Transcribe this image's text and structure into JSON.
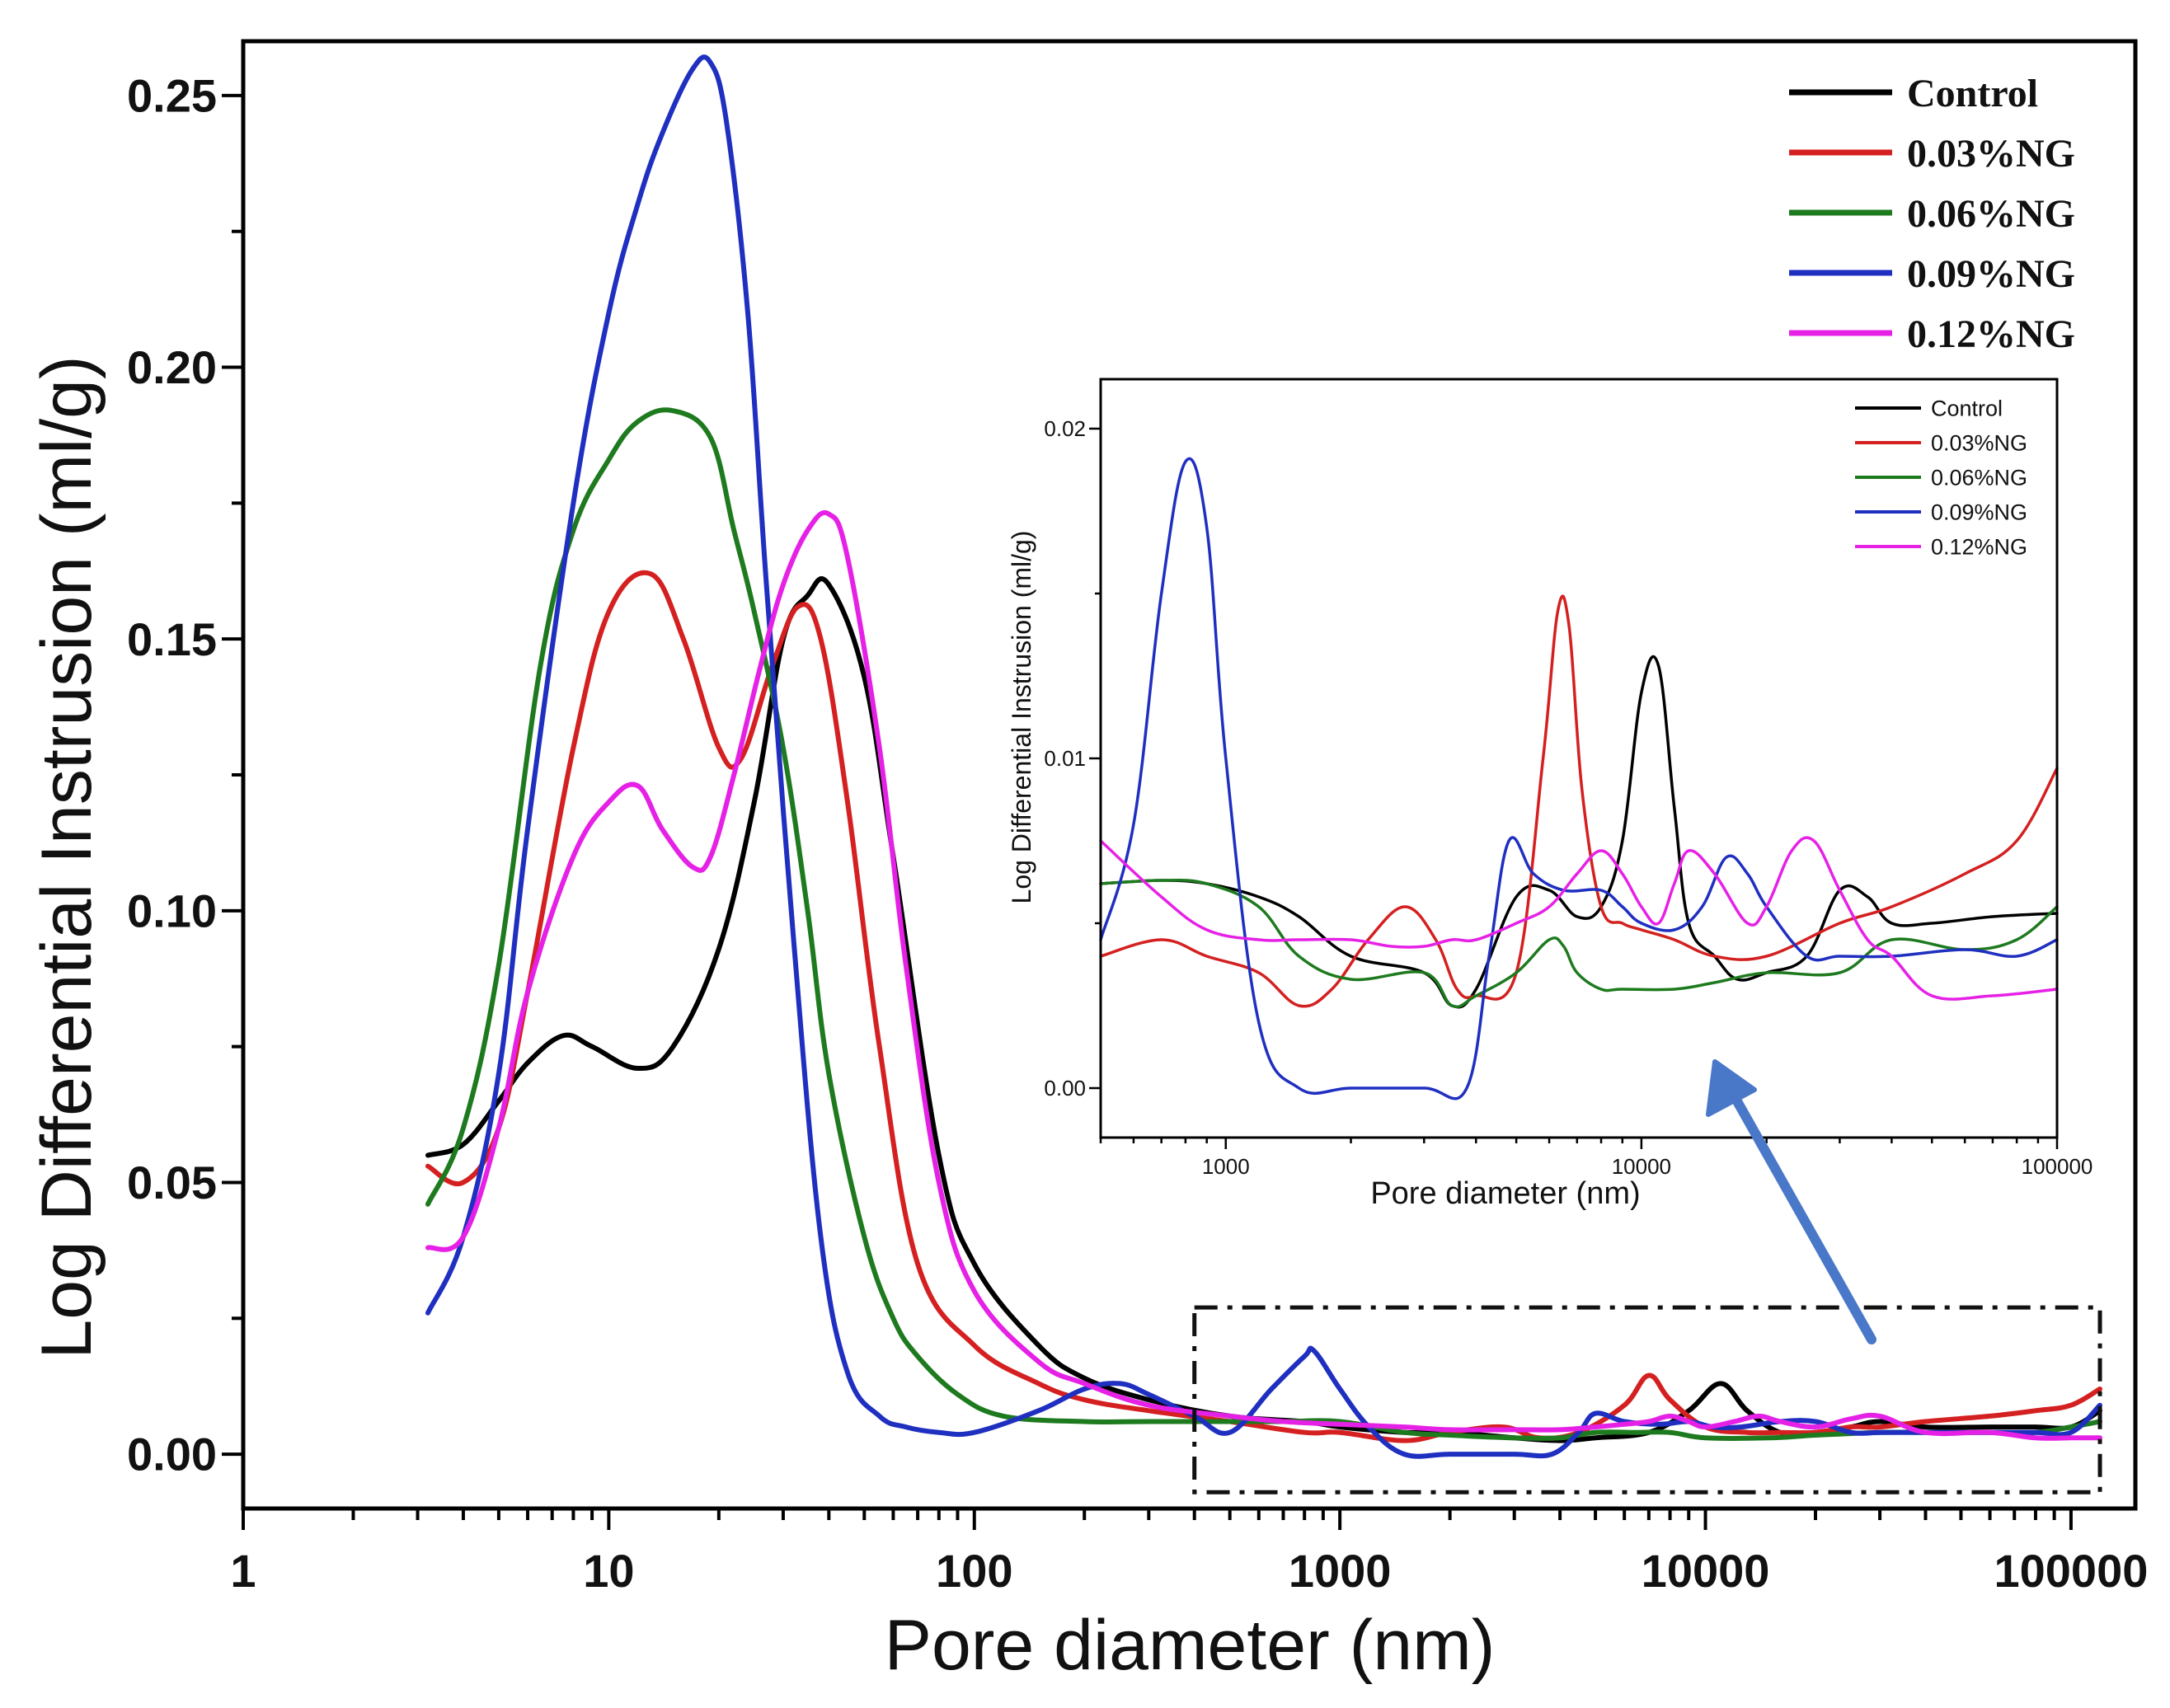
{
  "chart_data": [
    {
      "type": "line",
      "xscale": "log",
      "xlabel": "Pore diameter (nm)",
      "ylabel": "Log Differential Instrusion (ml/g)",
      "xlim": [
        1,
        150000
      ],
      "ylim": [
        -0.01,
        0.26
      ],
      "xticks": [
        1,
        10,
        100,
        1000,
        10000,
        100000
      ],
      "xtick_labels": [
        "1",
        "10",
        "100",
        "1000",
        "10000",
        "100000"
      ],
      "yticks": [
        0,
        0.05,
        0.1,
        0.15,
        0.2,
        0.25
      ],
      "ytick_labels": [
        "0.00",
        "0.05",
        "0.10",
        "0.15",
        "0.20",
        "0.25"
      ],
      "legend_position": "top-right",
      "highlight_box": {
        "x_range": [
          400,
          120000
        ],
        "y_range": [
          -0.007,
          0.027
        ]
      },
      "series": [
        {
          "name": "Control",
          "color": "#000000",
          "x": [
            3.2,
            4,
            5,
            6,
            7.5,
            9,
            12,
            15,
            20,
            25,
            30,
            35,
            40,
            50,
            60,
            80,
            100,
            150,
            200,
            300,
            500,
            800,
            1000,
            1500,
            2000,
            3000,
            4000,
            5000,
            7000,
            9000,
            11000,
            13000,
            16000,
            20000,
            25000,
            30000,
            40000,
            60000,
            80000,
            100000,
            120000
          ],
          "y": [
            0.055,
            0.057,
            0.065,
            0.072,
            0.077,
            0.075,
            0.071,
            0.075,
            0.093,
            0.12,
            0.15,
            0.158,
            0.16,
            0.143,
            0.11,
            0.055,
            0.035,
            0.02,
            0.014,
            0.01,
            0.007,
            0.006,
            0.005,
            0.004,
            0.004,
            0.003,
            0.0025,
            0.003,
            0.004,
            0.008,
            0.013,
            0.008,
            0.004,
            0.004,
            0.005,
            0.006,
            0.005,
            0.005,
            0.005,
            0.005,
            0.008
          ]
        },
        {
          "name": "0.03%NG",
          "color": "#d42020",
          "x": [
            3.2,
            4,
            5,
            6,
            8,
            10,
            13,
            16,
            20,
            23,
            28,
            33,
            38,
            45,
            55,
            70,
            100,
            150,
            200,
            300,
            500,
            800,
            1000,
            1500,
            2000,
            2800,
            3500,
            4500,
            6000,
            7000,
            8000,
            10000,
            13000,
            16000,
            20000,
            25000,
            30000,
            40000,
            60000,
            80000,
            100000,
            120000
          ],
          "y": [
            0.053,
            0.05,
            0.06,
            0.085,
            0.13,
            0.155,
            0.162,
            0.15,
            0.13,
            0.128,
            0.145,
            0.156,
            0.15,
            0.12,
            0.075,
            0.035,
            0.02,
            0.013,
            0.01,
            0.008,
            0.006,
            0.004,
            0.004,
            0.0025,
            0.004,
            0.005,
            0.003,
            0.004,
            0.009,
            0.0145,
            0.01,
            0.005,
            0.004,
            0.004,
            0.004,
            0.005,
            0.005,
            0.006,
            0.007,
            0.008,
            0.009,
            0.012
          ]
        },
        {
          "name": "0.06%NG",
          "color": "#1e7a1e",
          "x": [
            3.2,
            4,
            5,
            6.5,
            8,
            10,
            12,
            15,
            19,
            22,
            25,
            30,
            35,
            40,
            50,
            60,
            70,
            90,
            120,
            200,
            300,
            500,
            700,
            1000,
            1500,
            2000,
            3000,
            4000,
            5000,
            6500,
            8000,
            10000,
            15000,
            20000,
            30000,
            40000,
            60000,
            80000,
            100000,
            120000
          ],
          "y": [
            0.046,
            0.06,
            0.09,
            0.145,
            0.17,
            0.183,
            0.19,
            0.192,
            0.187,
            0.17,
            0.155,
            0.13,
            0.1,
            0.07,
            0.04,
            0.025,
            0.018,
            0.011,
            0.007,
            0.006,
            0.006,
            0.006,
            0.006,
            0.006,
            0.004,
            0.0035,
            0.003,
            0.003,
            0.004,
            0.004,
            0.004,
            0.003,
            0.003,
            0.0035,
            0.004,
            0.004,
            0.004,
            0.004,
            0.005,
            0.006
          ]
        },
        {
          "name": "0.09%NG",
          "color": "#1f2fc0",
          "x": [
            3.2,
            4,
            5,
            6,
            8,
            10,
            12,
            14,
            17,
            19,
            21,
            24,
            27,
            32,
            38,
            45,
            55,
            65,
            80,
            100,
            150,
            200,
            250,
            300,
            400,
            500,
            650,
            800,
            850,
            1000,
            1200,
            1500,
            2000,
            3000,
            3800,
            4500,
            5000,
            6000,
            7500,
            9000,
            10500,
            12500,
            16000,
            20000,
            25000,
            30000,
            35000,
            45000,
            60000,
            80000,
            100000,
            120000
          ],
          "y": [
            0.026,
            0.04,
            0.07,
            0.115,
            0.175,
            0.21,
            0.23,
            0.243,
            0.255,
            0.256,
            0.245,
            0.21,
            0.16,
            0.095,
            0.04,
            0.015,
            0.007,
            0.005,
            0.004,
            0.004,
            0.008,
            0.012,
            0.013,
            0.011,
            0.007,
            0.004,
            0.012,
            0.018,
            0.019,
            0.012,
            0.005,
            0.0,
            0.0,
            0.0,
            0.0,
            0.004,
            0.0075,
            0.006,
            0.0055,
            0.006,
            0.005,
            0.005,
            0.006,
            0.006,
            0.004,
            0.004,
            0.004,
            0.004,
            0.004,
            0.004,
            0.004,
            0.009
          ]
        },
        {
          "name": "0.12%NG",
          "color": "#e621e6",
          "x": [
            3.2,
            4,
            5,
            6,
            8,
            10,
            12,
            14,
            17,
            19,
            22,
            26,
            30,
            35,
            40,
            45,
            55,
            65,
            80,
            100,
            150,
            200,
            300,
            500,
            700,
            1000,
            1500,
            2000,
            3000,
            4000,
            5000,
            6000,
            7000,
            8000,
            9000,
            10000,
            12000,
            14000,
            16000,
            20000,
            25000,
            30000,
            40000,
            60000,
            80000,
            100000,
            120000
          ],
          "y": [
            0.038,
            0.04,
            0.06,
            0.085,
            0.11,
            0.12,
            0.123,
            0.115,
            0.108,
            0.11,
            0.125,
            0.145,
            0.16,
            0.17,
            0.173,
            0.165,
            0.13,
            0.09,
            0.05,
            0.03,
            0.017,
            0.013,
            0.009,
            0.007,
            0.006,
            0.0055,
            0.005,
            0.0045,
            0.0045,
            0.0045,
            0.005,
            0.0055,
            0.006,
            0.007,
            0.006,
            0.005,
            0.006,
            0.007,
            0.006,
            0.005,
            0.0065,
            0.007,
            0.004,
            0.004,
            0.003,
            0.003,
            0.003
          ]
        }
      ]
    },
    {
      "type": "line",
      "xscale": "log",
      "xlabel": "Pore diameter (nm)",
      "ylabel": "Log Differential Instrusion (ml/g)",
      "xlim": [
        500,
        100000
      ],
      "ylim": [
        -0.0015,
        0.0215
      ],
      "xticks": [
        1000,
        10000,
        100000
      ],
      "xtick_labels": [
        "1000",
        "10000",
        "100000"
      ],
      "yticks": [
        0,
        0.01,
        0.02
      ],
      "ytick_labels": [
        "0.00",
        "0.01",
        "0.02"
      ],
      "legend_position": "top-right",
      "series": [
        {
          "name": "Control",
          "color": "#000000",
          "x": [
            500,
            700,
            900,
            1200,
            1500,
            2000,
            3000,
            3500,
            4000,
            5000,
            6000,
            7000,
            8000,
            9000,
            10000,
            11000,
            12000,
            13000,
            15000,
            17000,
            20000,
            25000,
            30000,
            35000,
            40000,
            50000,
            70000,
            100000
          ],
          "y": [
            0.0062,
            0.0063,
            0.0062,
            0.0058,
            0.0052,
            0.004,
            0.0035,
            0.0025,
            0.003,
            0.0058,
            0.006,
            0.0052,
            0.0055,
            0.0075,
            0.012,
            0.0128,
            0.0085,
            0.005,
            0.004,
            0.0033,
            0.0035,
            0.004,
            0.006,
            0.0058,
            0.005,
            0.005,
            0.0052,
            0.0053
          ]
        },
        {
          "name": "0.03%NG",
          "color": "#d42020",
          "x": [
            500,
            700,
            900,
            1200,
            1500,
            1800,
            2200,
            2700,
            3200,
            3600,
            4000,
            5000,
            5800,
            6300,
            6700,
            7200,
            8000,
            9000,
            10000,
            12000,
            15000,
            20000,
            30000,
            40000,
            60000,
            80000,
            100000
          ],
          "y": [
            0.004,
            0.0045,
            0.004,
            0.0035,
            0.0025,
            0.003,
            0.0045,
            0.0055,
            0.0045,
            0.003,
            0.0028,
            0.0035,
            0.01,
            0.0145,
            0.014,
            0.009,
            0.0055,
            0.005,
            0.0048,
            0.0045,
            0.004,
            0.004,
            0.005,
            0.0055,
            0.0065,
            0.0075,
            0.0097
          ]
        },
        {
          "name": "0.06%NG",
          "color": "#1e7a1e",
          "x": [
            500,
            700,
            900,
            1200,
            1500,
            2000,
            3000,
            3500,
            4000,
            5000,
            6000,
            6500,
            7000,
            8000,
            9000,
            12000,
            15000,
            20000,
            30000,
            40000,
            60000,
            80000,
            100000
          ],
          "y": [
            0.0062,
            0.0063,
            0.0062,
            0.0055,
            0.004,
            0.0033,
            0.0035,
            0.0025,
            0.0028,
            0.0035,
            0.0045,
            0.0043,
            0.0035,
            0.003,
            0.003,
            0.003,
            0.0032,
            0.0035,
            0.0035,
            0.0045,
            0.0042,
            0.0045,
            0.0055
          ]
        },
        {
          "name": "0.09%NG",
          "color": "#1f2fc0",
          "x": [
            500,
            600,
            700,
            800,
            900,
            1000,
            1200,
            1500,
            2000,
            3000,
            3800,
            4300,
            4800,
            5500,
            6500,
            8000,
            9000,
            10000,
            12000,
            14000,
            16000,
            18000,
            20000,
            25000,
            30000,
            40000,
            60000,
            80000,
            100000
          ],
          "y": [
            0.0045,
            0.008,
            0.015,
            0.019,
            0.017,
            0.01,
            0.002,
            0.0,
            0.0,
            0.0,
            0.0,
            0.004,
            0.0075,
            0.0065,
            0.006,
            0.006,
            0.0055,
            0.005,
            0.0048,
            0.0055,
            0.007,
            0.0065,
            0.0055,
            0.004,
            0.004,
            0.004,
            0.0042,
            0.004,
            0.0045
          ]
        },
        {
          "name": "0.12%NG",
          "color": "#e621e6",
          "x": [
            500,
            700,
            900,
            1200,
            1500,
            2000,
            2500,
            3000,
            3500,
            4000,
            5000,
            6000,
            7000,
            8000,
            9000,
            10000,
            11000,
            12000,
            13000,
            15000,
            18000,
            20000,
            23000,
            26000,
            30000,
            35000,
            40000,
            50000,
            70000,
            100000
          ],
          "y": [
            0.0075,
            0.0058,
            0.0048,
            0.0045,
            0.0045,
            0.0045,
            0.0043,
            0.0043,
            0.0045,
            0.0045,
            0.005,
            0.0055,
            0.0065,
            0.0072,
            0.0065,
            0.0055,
            0.005,
            0.0062,
            0.0072,
            0.0065,
            0.005,
            0.0055,
            0.0072,
            0.0075,
            0.006,
            0.0045,
            0.004,
            0.0028,
            0.0028,
            0.003
          ]
        }
      ]
    }
  ]
}
